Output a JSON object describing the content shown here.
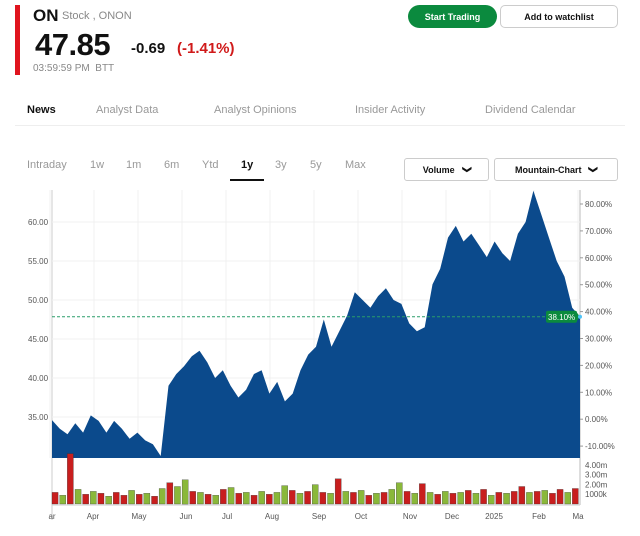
{
  "header": {
    "symbol": "ON",
    "subtitle": "Stock , ONON",
    "price": "47.85",
    "change": "-0.69",
    "change_pct": "(-1.41%)",
    "time": "03:59:59 PM",
    "exchange": "BTT",
    "start_trading": "Start Trading",
    "add_watchlist": "Add to watchlist"
  },
  "tabs": [
    "News",
    "Analyst Data",
    "Analyst Opinions",
    "Insider Activity",
    "Dividend Calendar"
  ],
  "ranges": [
    "Intraday",
    "1w",
    "1m",
    "6m",
    "Ytd",
    "1y",
    "3y",
    "5y",
    "Max"
  ],
  "active_range": "1y",
  "volume_dropdown": "Volume",
  "chart_dropdown": "Mountain-Chart",
  "colors": {
    "area": "#0b4a8c",
    "up": "#8ab83a",
    "down": "#c81e1e",
    "accent": "#0b8a3e",
    "negative": "#d01a1a"
  },
  "chart_data": {
    "type": "area",
    "price_ticks": [
      "60.00",
      "55.00",
      "50.00",
      "45.00",
      "40.00",
      "35.00"
    ],
    "pct_ticks": [
      "80.00%",
      "70.00%",
      "60.00%",
      "50.00%",
      "40.00%",
      "30.00%",
      "20.00%",
      "10.00%",
      "0.00%",
      "-10.00%"
    ],
    "volume_ticks": [
      "4.00m",
      "3.00m",
      "2.00m",
      "1000k"
    ],
    "x_labels": [
      "ar",
      "Apr",
      "May",
      "Jun",
      "Jul",
      "Aug",
      "Sep",
      "Oct",
      "Nov",
      "Dec",
      "2025",
      "Feb",
      "Ma"
    ],
    "last_pct": "38.10%",
    "last_price": 47.85,
    "prices": [
      34.6,
      33.5,
      32.8,
      34.2,
      33,
      35.2,
      34.5,
      33,
      34.5,
      33.5,
      32.2,
      33,
      32,
      31.5,
      30,
      39,
      40.5,
      41.5,
      42.8,
      43.5,
      42,
      40,
      41,
      39,
      37.5,
      38.5,
      40.5,
      41,
      38,
      39.5,
      37,
      38,
      41,
      43,
      44,
      47.5,
      44,
      46,
      48,
      51,
      50,
      49,
      50.5,
      51.5,
      50,
      49.5,
      47,
      46,
      46.5,
      52,
      54,
      58,
      59.5,
      57.5,
      58.5,
      57,
      55.5,
      57.5,
      56,
      55,
      58.5,
      60,
      64,
      61,
      58,
      55,
      53,
      49,
      47.85
    ],
    "volume": [
      [
        1.2,
        0
      ],
      [
        0.9,
        1
      ],
      [
        5.2,
        0
      ],
      [
        1.5,
        1
      ],
      [
        1,
        0
      ],
      [
        1.3,
        1
      ],
      [
        1.1,
        0
      ],
      [
        0.8,
        1
      ],
      [
        1.2,
        0
      ],
      [
        0.9,
        0
      ],
      [
        1.4,
        1
      ],
      [
        1,
        0
      ],
      [
        1.1,
        1
      ],
      [
        0.8,
        0
      ],
      [
        1.6,
        1
      ],
      [
        2.2,
        0
      ],
      [
        1.8,
        1
      ],
      [
        2.5,
        1
      ],
      [
        1.3,
        0
      ],
      [
        1.2,
        1
      ],
      [
        1,
        0
      ],
      [
        0.9,
        1
      ],
      [
        1.5,
        0
      ],
      [
        1.7,
        1
      ],
      [
        1.1,
        0
      ],
      [
        1.2,
        1
      ],
      [
        0.9,
        0
      ],
      [
        1.3,
        1
      ],
      [
        1,
        0
      ],
      [
        1.2,
        1
      ],
      [
        1.9,
        1
      ],
      [
        1.4,
        0
      ],
      [
        1.1,
        1
      ],
      [
        1.3,
        0
      ],
      [
        2,
        1
      ],
      [
        1.2,
        0
      ],
      [
        1.1,
        1
      ],
      [
        2.6,
        0
      ],
      [
        1.3,
        1
      ],
      [
        1.2,
        0
      ],
      [
        1.4,
        1
      ],
      [
        0.9,
        0
      ],
      [
        1.1,
        1
      ],
      [
        1.2,
        0
      ],
      [
        1.5,
        1
      ],
      [
        2.2,
        1
      ],
      [
        1.3,
        0
      ],
      [
        1.1,
        1
      ],
      [
        2.1,
        0
      ],
      [
        1.2,
        1
      ],
      [
        1,
        0
      ],
      [
        1.3,
        1
      ],
      [
        1.1,
        0
      ],
      [
        1.2,
        1
      ],
      [
        1.4,
        0
      ],
      [
        1.1,
        1
      ],
      [
        1.5,
        0
      ],
      [
        0.9,
        1
      ],
      [
        1.2,
        0
      ],
      [
        1.1,
        1
      ],
      [
        1.3,
        0
      ],
      [
        1.8,
        0
      ],
      [
        1.2,
        1
      ],
      [
        1.3,
        0
      ],
      [
        1.4,
        1
      ],
      [
        1.1,
        0
      ],
      [
        1.5,
        0
      ],
      [
        1.2,
        1
      ],
      [
        1.6,
        0
      ]
    ]
  }
}
